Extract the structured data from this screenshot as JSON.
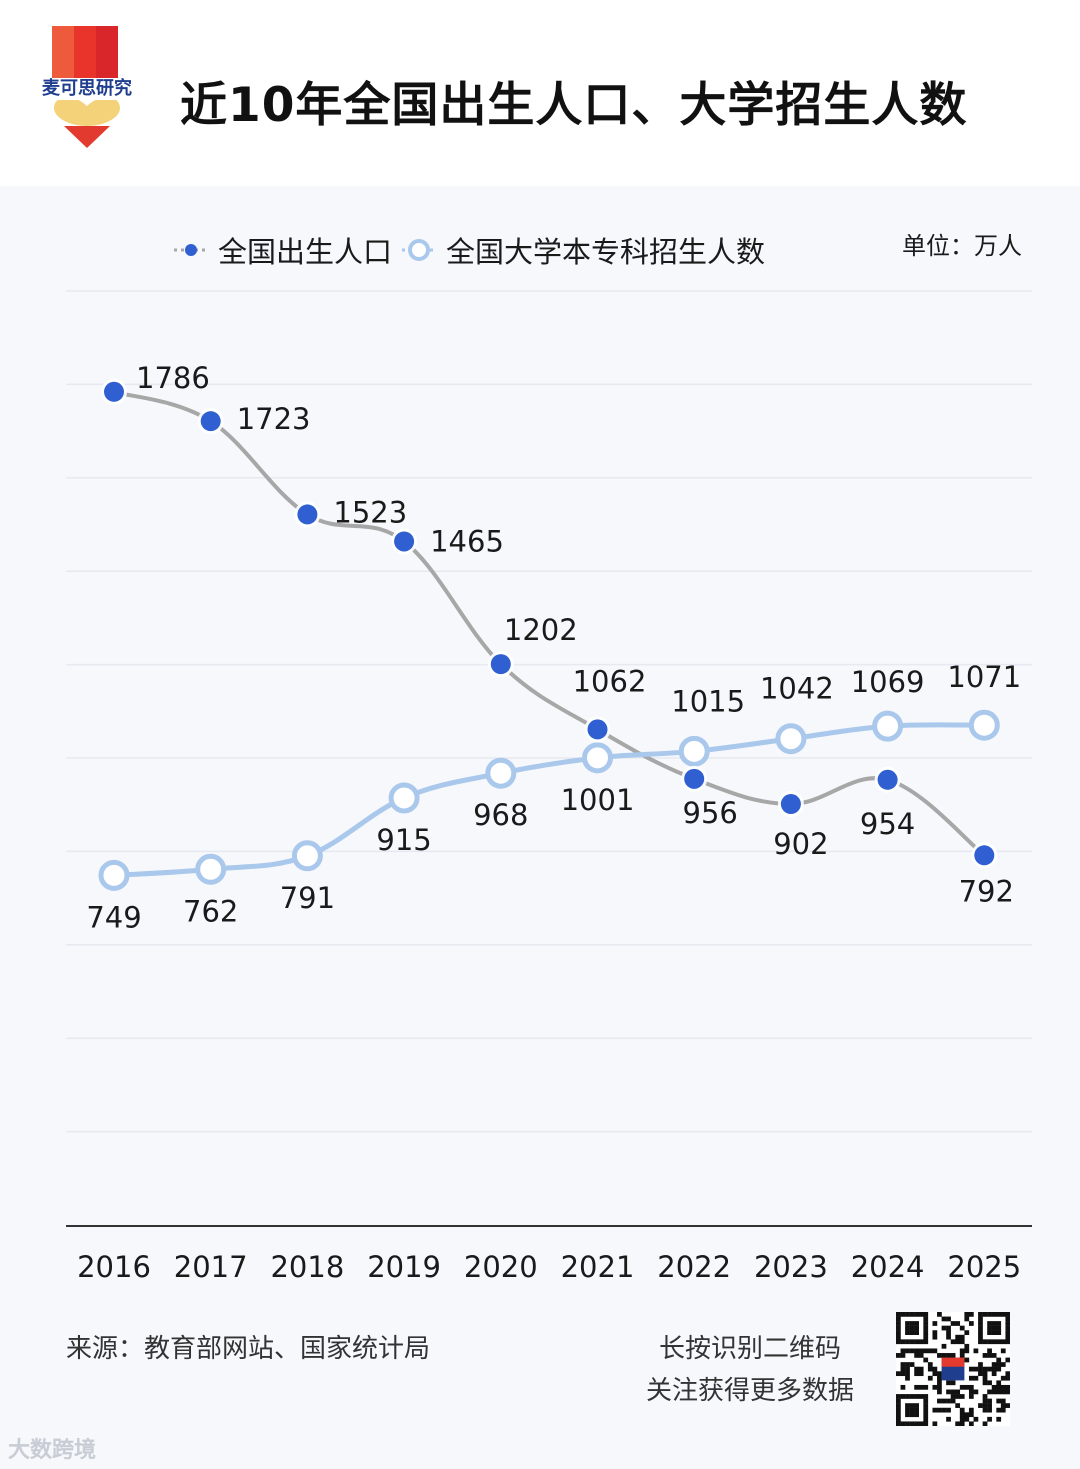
{
  "header": {
    "logo_text": "麦可思研究",
    "title": "近10年全国出生人口、大学招生人数"
  },
  "legend": {
    "series1": "全国出生人口",
    "series2": "全国大学本专科招生人数"
  },
  "unit": "单位：万人",
  "footer": {
    "source": "来源：教育部网站、国家统计局",
    "qr_line1": "长按识别二维码",
    "qr_line2": "关注获得更多数据"
  },
  "watermark": "大数跨境",
  "colors": {
    "birth_point": "#2f5fd0",
    "birth_line": "#a7a7a7",
    "enroll_line": "#a9c8ec",
    "enroll_point_fill": "#ffffff"
  },
  "chart_data": {
    "type": "line",
    "categories": [
      "2016",
      "2017",
      "2018",
      "2019",
      "2020",
      "2021",
      "2022",
      "2023",
      "2024",
      "2025"
    ],
    "series": [
      {
        "name": "全国出生人口",
        "values": [
          1786,
          1723,
          1523,
          1465,
          1202,
          1062,
          956,
          902,
          954,
          792
        ]
      },
      {
        "name": "全国大学本专科招生人数",
        "values": [
          749,
          762,
          791,
          915,
          968,
          1001,
          1015,
          1042,
          1069,
          1071
        ]
      }
    ],
    "grid": true,
    "legend_position": "top"
  }
}
